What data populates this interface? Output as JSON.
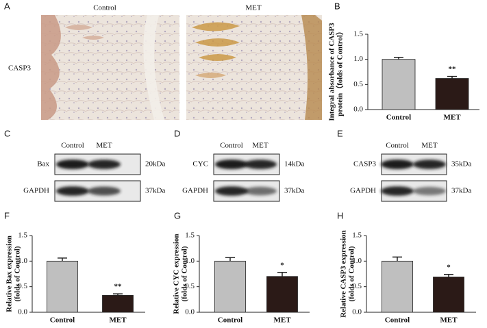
{
  "panel_labels": [
    "A",
    "B",
    "C",
    "D",
    "E",
    "F",
    "G",
    "H"
  ],
  "histology": {
    "columns": [
      "Control",
      "MET"
    ],
    "row_label": "CASP3"
  },
  "blots": [
    {
      "columns": [
        "Control",
        "MET"
      ],
      "target": "Bax",
      "target_size": "20kDa",
      "control": "GAPDH",
      "control_size": "37kDa"
    },
    {
      "columns": [
        "Control",
        "MET"
      ],
      "target": "CYC",
      "target_size": "14kDa",
      "control": "GAPDH",
      "control_size": "37kDa"
    },
    {
      "columns": [
        "Control",
        "MET"
      ],
      "target": "CASP3",
      "target_size": "35kDa",
      "control": "GAPDH",
      "control_size": "37kDa"
    }
  ],
  "chart_data": [
    {
      "type": "bar",
      "ylabel": [
        "Integral absorbance of CASP3",
        "protein（folds of Control）"
      ],
      "categories": [
        "Control",
        "MET"
      ],
      "values": [
        1.0,
        0.62
      ],
      "errors": [
        0.04,
        0.04
      ],
      "colors": [
        "#bfbfbf",
        "#2b1a17"
      ],
      "annotations": [
        {
          "category": "MET",
          "text": "**"
        }
      ],
      "ylim": [
        0,
        1.5
      ],
      "yticks": [
        {
          "value": 0,
          "label": "0.0"
        },
        0.5,
        {
          "value": 1,
          "label": "1.0"
        },
        1.5
      ]
    },
    {
      "type": "bar",
      "ylabel": [
        "Relative Bax  expression",
        "(folds of Control)"
      ],
      "categories": [
        "Control",
        "MET"
      ],
      "values": [
        1.0,
        0.33
      ],
      "errors": [
        0.06,
        0.03
      ],
      "colors": [
        "#bfbfbf",
        "#2b1a17"
      ],
      "annotations": [
        {
          "category": "MET",
          "text": "**"
        }
      ],
      "ylim": [
        0,
        1.5
      ],
      "yticks": [
        {
          "value": 0,
          "label": "0.0"
        },
        0.5,
        {
          "value": 1,
          "label": "1.0"
        },
        1.5
      ]
    },
    {
      "type": "bar",
      "ylabel": [
        "Relative CYC expression",
        "(folds of Control)"
      ],
      "categories": [
        "Control",
        "MET"
      ],
      "values": [
        1.0,
        0.7
      ],
      "errors": [
        0.07,
        0.08
      ],
      "colors": [
        "#bfbfbf",
        "#2b1a17"
      ],
      "annotations": [
        {
          "category": "MET",
          "text": "*"
        }
      ],
      "ylim": [
        0,
        1.5
      ],
      "yticks": [
        {
          "value": 0,
          "label": "0.0"
        },
        0.5,
        {
          "value": 1,
          "label": "1.0"
        },
        1.5
      ]
    },
    {
      "type": "bar",
      "ylabel": [
        "Relative CASP3  expression",
        "(folds of Control)"
      ],
      "categories": [
        "Control",
        "MET"
      ],
      "values": [
        1.0,
        0.69
      ],
      "errors": [
        0.08,
        0.05
      ],
      "colors": [
        "#bfbfbf",
        "#2b1a17"
      ],
      "annotations": [
        {
          "category": "MET",
          "text": "*"
        }
      ],
      "ylim": [
        0,
        1.5
      ],
      "yticks": [
        {
          "value": 0,
          "label": "0.0"
        },
        0.5,
        {
          "value": 1,
          "label": "1.0"
        },
        1.5
      ]
    }
  ]
}
